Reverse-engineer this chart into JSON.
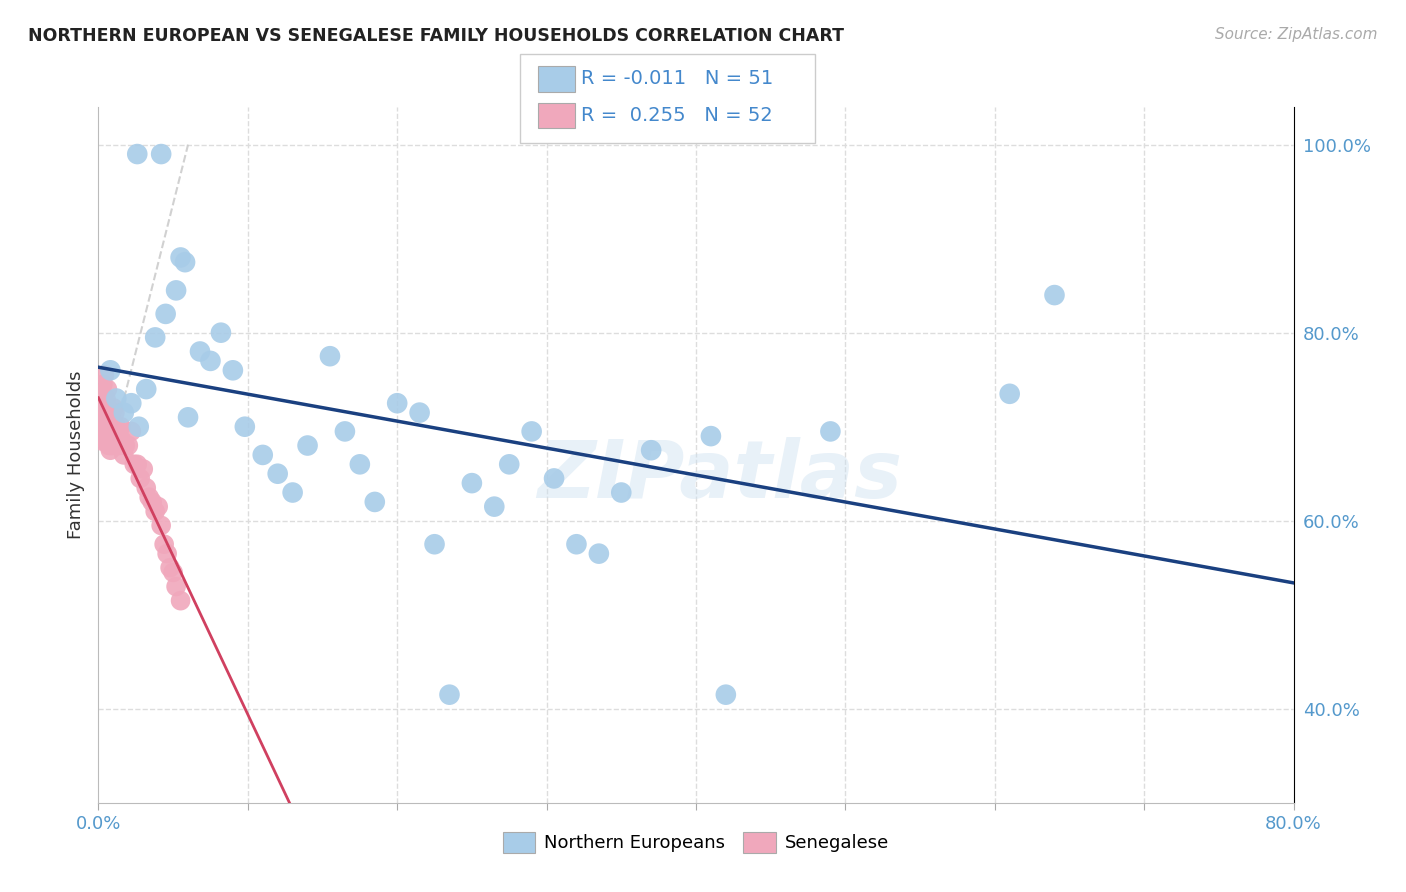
{
  "title": "NORTHERN EUROPEAN VS SENEGALESE FAMILY HOUSEHOLDS CORRELATION CHART",
  "source": "Source: ZipAtlas.com",
  "ylabel": "Family Households",
  "xlim": [
    0.0,
    0.8
  ],
  "ylim": [
    0.3,
    1.04
  ],
  "blue_color": "#a8cce8",
  "pink_color": "#f0a8bc",
  "line_blue_color": "#1a4080",
  "line_pink_color": "#d04060",
  "watermark": "ZIPatlas",
  "blue_points_x": [
    0.026,
    0.042,
    0.055,
    0.058,
    0.008,
    0.012,
    0.017,
    0.022,
    0.027,
    0.032,
    0.038,
    0.045,
    0.052,
    0.06,
    0.068,
    0.075,
    0.082,
    0.09,
    0.098,
    0.11,
    0.12,
    0.13,
    0.14,
    0.155,
    0.165,
    0.175,
    0.185,
    0.2,
    0.215,
    0.225,
    0.235,
    0.25,
    0.265,
    0.275,
    0.29,
    0.305,
    0.32,
    0.335,
    0.35,
    0.37,
    0.41,
    0.42,
    0.49,
    0.61,
    0.64
  ],
  "blue_points_y": [
    0.99,
    0.99,
    0.88,
    0.875,
    0.76,
    0.73,
    0.715,
    0.725,
    0.7,
    0.74,
    0.795,
    0.82,
    0.845,
    0.71,
    0.78,
    0.77,
    0.8,
    0.76,
    0.7,
    0.67,
    0.65,
    0.63,
    0.68,
    0.775,
    0.695,
    0.66,
    0.62,
    0.725,
    0.715,
    0.575,
    0.415,
    0.64,
    0.615,
    0.66,
    0.695,
    0.645,
    0.575,
    0.565,
    0.63,
    0.675,
    0.69,
    0.415,
    0.695,
    0.735,
    0.84
  ],
  "pink_points_x": [
    0.001,
    0.001,
    0.002,
    0.002,
    0.002,
    0.003,
    0.003,
    0.003,
    0.004,
    0.004,
    0.004,
    0.005,
    0.005,
    0.005,
    0.006,
    0.006,
    0.006,
    0.007,
    0.007,
    0.008,
    0.008,
    0.008,
    0.009,
    0.009,
    0.01,
    0.01,
    0.011,
    0.012,
    0.013,
    0.014,
    0.015,
    0.016,
    0.017,
    0.018,
    0.02,
    0.022,
    0.024,
    0.026,
    0.028,
    0.03,
    0.032,
    0.034,
    0.036,
    0.038,
    0.04,
    0.042,
    0.044,
    0.046,
    0.048,
    0.05,
    0.052,
    0.055
  ],
  "pink_points_y": [
    0.715,
    0.695,
    0.735,
    0.705,
    0.685,
    0.745,
    0.72,
    0.695,
    0.755,
    0.72,
    0.7,
    0.73,
    0.705,
    0.685,
    0.74,
    0.715,
    0.685,
    0.71,
    0.68,
    0.71,
    0.695,
    0.675,
    0.705,
    0.68,
    0.72,
    0.695,
    0.715,
    0.7,
    0.695,
    0.68,
    0.7,
    0.685,
    0.67,
    0.68,
    0.68,
    0.695,
    0.66,
    0.66,
    0.645,
    0.655,
    0.635,
    0.625,
    0.62,
    0.61,
    0.615,
    0.595,
    0.575,
    0.565,
    0.55,
    0.545,
    0.53,
    0.515
  ]
}
